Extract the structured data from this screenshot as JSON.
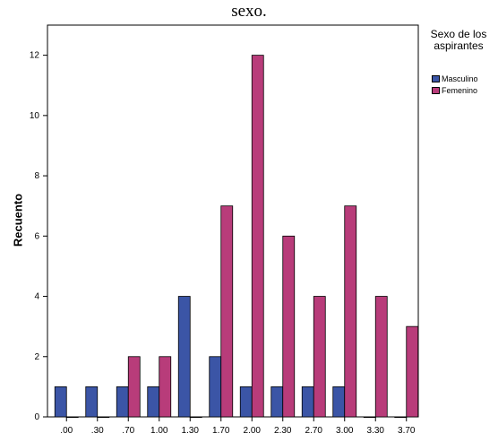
{
  "caption": "sexo.",
  "chart_data": {
    "type": "bar",
    "title": "",
    "xlabel": "",
    "ylabel": "Recuento",
    "categories": [
      ".00",
      ".30",
      ".70",
      "1.00",
      "1.30",
      "1.70",
      "2.00",
      "2.30",
      "2.70",
      "3.00",
      "3.30",
      "3.70"
    ],
    "series": [
      {
        "name": "Masculino",
        "values": [
          1,
          1,
          1,
          1,
          4,
          2,
          1,
          1,
          1,
          1,
          0,
          0
        ],
        "color": "#3b55a6"
      },
      {
        "name": "Femenino",
        "values": [
          0,
          0,
          2,
          2,
          0,
          7,
          12,
          6,
          4,
          7,
          4,
          3
        ],
        "color": "#b83c7a"
      }
    ],
    "ylim": [
      0,
      13
    ],
    "yticks": [
      0,
      2,
      4,
      6,
      8,
      10,
      12
    ],
    "grid": false,
    "legend": {
      "title": "Sexo de los aspirantes",
      "position": "right"
    }
  }
}
